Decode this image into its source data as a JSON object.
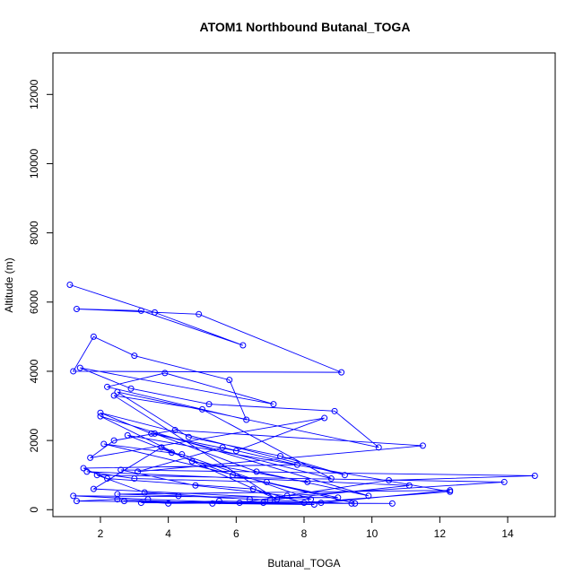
{
  "chart_data": {
    "type": "line",
    "title": "ATOM1 Northbound Butanal_TOGA",
    "xlabel": "Butanal_TOGA",
    "ylabel": "Altitude (m)",
    "xlim": [
      0.6,
      15.4
    ],
    "ylim": [
      -200,
      13200
    ],
    "x_ticks": [
      2,
      4,
      6,
      8,
      10,
      12,
      14
    ],
    "y_ticks": [
      0,
      2000,
      4000,
      6000,
      8000,
      10000,
      12000
    ],
    "x_tick_labels": [
      "2",
      "4",
      "6",
      "8",
      "10",
      "12",
      "14"
    ],
    "y_tick_labels": [
      "0",
      "2000",
      "4000",
      "6000",
      "8000",
      "10000",
      "12000"
    ],
    "grid": false,
    "legend": "none",
    "colors": {
      "series": "#0000ff",
      "axis": "#000000",
      "background": "#ffffff"
    },
    "series": [
      {
        "marker": "open-circle",
        "x": [
          1.1,
          3.6,
          6.2,
          3.2,
          1.3,
          4.9,
          9.1,
          1.2,
          1.8,
          3.0,
          5.8,
          6.3,
          2.2,
          3.9,
          7.1,
          1.4,
          2.9,
          5.2,
          8.9,
          10.2,
          2.5,
          4.6,
          7.3,
          9.2,
          2.0,
          3.5,
          6.0,
          8.6,
          1.7,
          2.4,
          4.2,
          11.5,
          3.1,
          5.6,
          7.8,
          1.5,
          2.2,
          6.5,
          8.0,
          12.3,
          2.8,
          4.1,
          5.9,
          9.0,
          1.2,
          3.4,
          6.1,
          10.5,
          14.8,
          2.6,
          4.8,
          7.5,
          13.9,
          1.9,
          3.3,
          6.4,
          9.4,
          1.3,
          2.5,
          5.3,
          8.3,
          2.7,
          4.0,
          6.8,
          10.6,
          3.2,
          5.5,
          8.5,
          12.3,
          2.5,
          4.3,
          7.0,
          11.1,
          1.6,
          3.0,
          6.9,
          9.5,
          2.1,
          4.4,
          8.2,
          1.8,
          3.8,
          7.2,
          2.4,
          5.0,
          8.8,
          3.6,
          6.6,
          9.9,
          2.0,
          4.7,
          8.1
        ],
        "y": [
          6500,
          5700,
          4750,
          5750,
          5800,
          5650,
          3970,
          4000,
          5000,
          4450,
          3750,
          2600,
          3550,
          3950,
          3050,
          4100,
          3500,
          3050,
          2850,
          1800,
          3400,
          2100,
          1550,
          1000,
          2800,
          2200,
          1700,
          2650,
          1500,
          2000,
          2300,
          1850,
          1100,
          1800,
          1300,
          1200,
          900,
          600,
          200,
          520,
          2150,
          1650,
          1000,
          350,
          400,
          300,
          200,
          850,
          980,
          1150,
          700,
          400,
          800,
          1000,
          500,
          300,
          180,
          250,
          300,
          180,
          150,
          250,
          180,
          200,
          180,
          200,
          250,
          200,
          560,
          450,
          400,
          280,
          700,
          1100,
          900,
          800,
          180,
          1900,
          1600,
          300,
          600,
          1800,
          300,
          3300,
          2900,
          900,
          2200,
          1100,
          400,
          2700,
          1400,
          800
        ]
      }
    ]
  }
}
